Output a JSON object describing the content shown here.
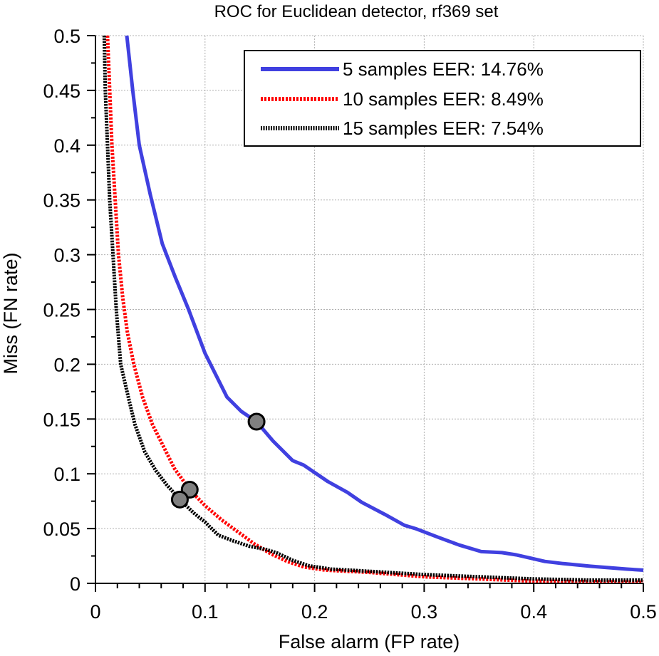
{
  "chart_data": {
    "type": "line",
    "title": "ROC for Euclidean detector, rf369 set",
    "xlabel": "False alarm (FP rate)",
    "ylabel": "Miss (FN rate)",
    "xlim": [
      0,
      0.5
    ],
    "ylim": [
      0,
      0.5
    ],
    "xticks": [
      0,
      0.1,
      0.2,
      0.3,
      0.4,
      0.5
    ],
    "xtick_labels": [
      "0",
      "0.1",
      "0.2",
      "0.3",
      "0.4",
      "0.5"
    ],
    "yticks": [
      0,
      0.05,
      0.1,
      0.15,
      0.2,
      0.25,
      0.3,
      0.35,
      0.4,
      0.45,
      0.5
    ],
    "ytick_labels": [
      "0",
      "0.05",
      "0.1",
      "0.15",
      "0.2",
      "0.25",
      "0.3",
      "0.35",
      "0.4",
      "0.45",
      "0.5"
    ],
    "x_minor_step": 0.02,
    "y_minor_step": 0.025,
    "grid": true,
    "legend_position": "top-right",
    "series": [
      {
        "name": "5 samples EER: 14.76%",
        "color": "#4040e0",
        "style": "solid",
        "eer": 0.1476,
        "eer_point": [
          0.147,
          0.1476
        ],
        "points": [
          [
            0.0286,
            0.5
          ],
          [
            0.034,
            0.45
          ],
          [
            0.04,
            0.4
          ],
          [
            0.05,
            0.355
          ],
          [
            0.061,
            0.31
          ],
          [
            0.073,
            0.279
          ],
          [
            0.085,
            0.25
          ],
          [
            0.1,
            0.21
          ],
          [
            0.12,
            0.17
          ],
          [
            0.133,
            0.157
          ],
          [
            0.147,
            0.1476
          ],
          [
            0.162,
            0.13
          ],
          [
            0.18,
            0.112
          ],
          [
            0.19,
            0.108
          ],
          [
            0.212,
            0.093
          ],
          [
            0.23,
            0.083
          ],
          [
            0.243,
            0.074
          ],
          [
            0.264,
            0.063
          ],
          [
            0.282,
            0.053
          ],
          [
            0.292,
            0.05
          ],
          [
            0.313,
            0.042
          ],
          [
            0.332,
            0.035
          ],
          [
            0.352,
            0.029
          ],
          [
            0.371,
            0.028
          ],
          [
            0.384,
            0.026
          ],
          [
            0.397,
            0.023
          ],
          [
            0.41,
            0.02
          ],
          [
            0.427,
            0.018
          ],
          [
            0.452,
            0.0156
          ],
          [
            0.485,
            0.013
          ],
          [
            0.5,
            0.012
          ]
        ]
      },
      {
        "name": "10 samples EER: 8.49%",
        "color": "#ff0000",
        "style": "dotted",
        "eer": 0.0849,
        "eer_point": [
          0.086,
          0.0855
        ],
        "points": [
          [
            0.011,
            0.5
          ],
          [
            0.013,
            0.45
          ],
          [
            0.015,
            0.4
          ],
          [
            0.018,
            0.35
          ],
          [
            0.021,
            0.3
          ],
          [
            0.025,
            0.26
          ],
          [
            0.029,
            0.23
          ],
          [
            0.035,
            0.2
          ],
          [
            0.043,
            0.17
          ],
          [
            0.052,
            0.145
          ],
          [
            0.062,
            0.125
          ],
          [
            0.072,
            0.105
          ],
          [
            0.086,
            0.0855
          ],
          [
            0.1,
            0.071
          ],
          [
            0.115,
            0.058
          ],
          [
            0.13,
            0.047
          ],
          [
            0.145,
            0.036
          ],
          [
            0.16,
            0.027
          ],
          [
            0.175,
            0.02
          ],
          [
            0.19,
            0.015
          ],
          [
            0.21,
            0.012
          ],
          [
            0.25,
            0.01
          ],
          [
            0.3,
            0.006
          ],
          [
            0.35,
            0.004
          ],
          [
            0.4,
            0.002
          ],
          [
            0.45,
            0.0015
          ],
          [
            0.5,
            0.001
          ]
        ]
      },
      {
        "name": "15 samples EER: 7.54%",
        "color": "#000000",
        "style": "dotted",
        "eer": 0.0754,
        "eer_point": [
          0.077,
          0.0765
        ],
        "points": [
          [
            0.008,
            0.5
          ],
          [
            0.009,
            0.45
          ],
          [
            0.011,
            0.4
          ],
          [
            0.013,
            0.35
          ],
          [
            0.016,
            0.3
          ],
          [
            0.019,
            0.25
          ],
          [
            0.023,
            0.2
          ],
          [
            0.03,
            0.17
          ],
          [
            0.036,
            0.145
          ],
          [
            0.045,
            0.12
          ],
          [
            0.055,
            0.103
          ],
          [
            0.065,
            0.09
          ],
          [
            0.077,
            0.0765
          ],
          [
            0.09,
            0.064
          ],
          [
            0.1,
            0.056
          ],
          [
            0.112,
            0.044
          ],
          [
            0.125,
            0.039
          ],
          [
            0.14,
            0.034
          ],
          [
            0.155,
            0.031
          ],
          [
            0.165,
            0.028
          ],
          [
            0.18,
            0.021
          ],
          [
            0.195,
            0.016
          ],
          [
            0.215,
            0.013
          ],
          [
            0.25,
            0.011
          ],
          [
            0.3,
            0.008
          ],
          [
            0.35,
            0.006
          ],
          [
            0.4,
            0.004
          ],
          [
            0.45,
            0.003
          ],
          [
            0.5,
            0.003
          ]
        ]
      }
    ],
    "eer_marker_color": "#808080"
  }
}
